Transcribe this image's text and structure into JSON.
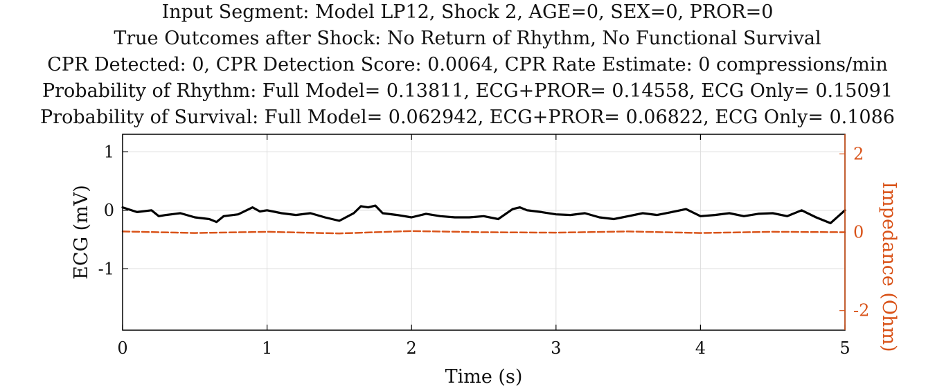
{
  "title_lines": [
    "Input Segment: Model LP12, Shock 2, AGE=0, SEX=0, PROR=0",
    "True Outcomes after Shock: No Return of Rhythm, No Functional Survival",
    "CPR Detected: 0, CPR Detection Score: 0.0064, CPR Rate Estimate: 0 compressions/min",
    "Probability of Rhythm: Full Model= 0.13811, ECG+PROR= 0.14558, ECG Only= 0.15091",
    "Probability of Survival: Full Model= 0.062942, ECG+PROR= 0.06822, ECG Only= 0.1086"
  ],
  "chart_data": {
    "type": "line",
    "xlabel": "Time (s)",
    "ylabel": "ECG (mV)",
    "y2label": "Impedance (Ohm)",
    "xlim": [
      0,
      5
    ],
    "ylim": [
      -2.05,
      1.3
    ],
    "y2lim": [
      -2.5,
      2.5
    ],
    "grid": true,
    "x_ticks": [
      0,
      1,
      2,
      3,
      4,
      5
    ],
    "x_tick_labels": [
      "0",
      "1",
      "2",
      "3",
      "4",
      "5"
    ],
    "y_ticks": [
      1,
      0,
      -1
    ],
    "y_tick_labels": [
      "1",
      "0",
      "-1"
    ],
    "y2_ticks": [
      2,
      0,
      -2
    ],
    "y2_tick_labels": [
      "2",
      "0",
      "-2"
    ],
    "colors": {
      "ecg": "#000000",
      "impedance": "#d95319",
      "grid": "#dcdcdc"
    },
    "series": [
      {
        "axis": "left",
        "style": "solid",
        "x": [
          0,
          0.1,
          0.2,
          0.25,
          0.3,
          0.4,
          0.5,
          0.6,
          0.65,
          0.7,
          0.8,
          0.9,
          0.95,
          1.0,
          1.1,
          1.2,
          1.3,
          1.4,
          1.5,
          1.6,
          1.65,
          1.7,
          1.75,
          1.8,
          1.9,
          2.0,
          2.1,
          2.2,
          2.3,
          2.4,
          2.5,
          2.6,
          2.7,
          2.75,
          2.8,
          2.9,
          3.0,
          3.1,
          3.2,
          3.3,
          3.4,
          3.5,
          3.6,
          3.7,
          3.8,
          3.9,
          4.0,
          4.1,
          4.2,
          4.3,
          4.4,
          4.5,
          4.6,
          4.7,
          4.8,
          4.9,
          5.0
        ],
        "y": [
          0.05,
          -0.03,
          0.0,
          -0.1,
          -0.08,
          -0.05,
          -0.12,
          -0.15,
          -0.2,
          -0.1,
          -0.07,
          0.05,
          -0.02,
          0.0,
          -0.05,
          -0.08,
          -0.05,
          -0.12,
          -0.18,
          -0.05,
          0.07,
          0.05,
          0.08,
          -0.05,
          -0.08,
          -0.12,
          -0.06,
          -0.1,
          -0.12,
          -0.12,
          -0.1,
          -0.15,
          0.02,
          0.05,
          0.0,
          -0.03,
          -0.07,
          -0.08,
          -0.05,
          -0.12,
          -0.15,
          -0.1,
          -0.05,
          -0.08,
          -0.03,
          0.02,
          -0.1,
          -0.08,
          -0.05,
          -0.1,
          -0.06,
          -0.05,
          -0.1,
          0.0,
          -0.12,
          -0.22,
          0.0
        ]
      },
      {
        "axis": "right",
        "style": "dashed",
        "x": [
          0,
          0.5,
          1.0,
          1.5,
          2.0,
          2.5,
          3.0,
          3.5,
          4.0,
          4.5,
          5.0
        ],
        "y": [
          0.02,
          -0.02,
          0.01,
          -0.03,
          0.03,
          0.0,
          -0.01,
          0.02,
          -0.02,
          0.01,
          0.0
        ]
      }
    ]
  }
}
